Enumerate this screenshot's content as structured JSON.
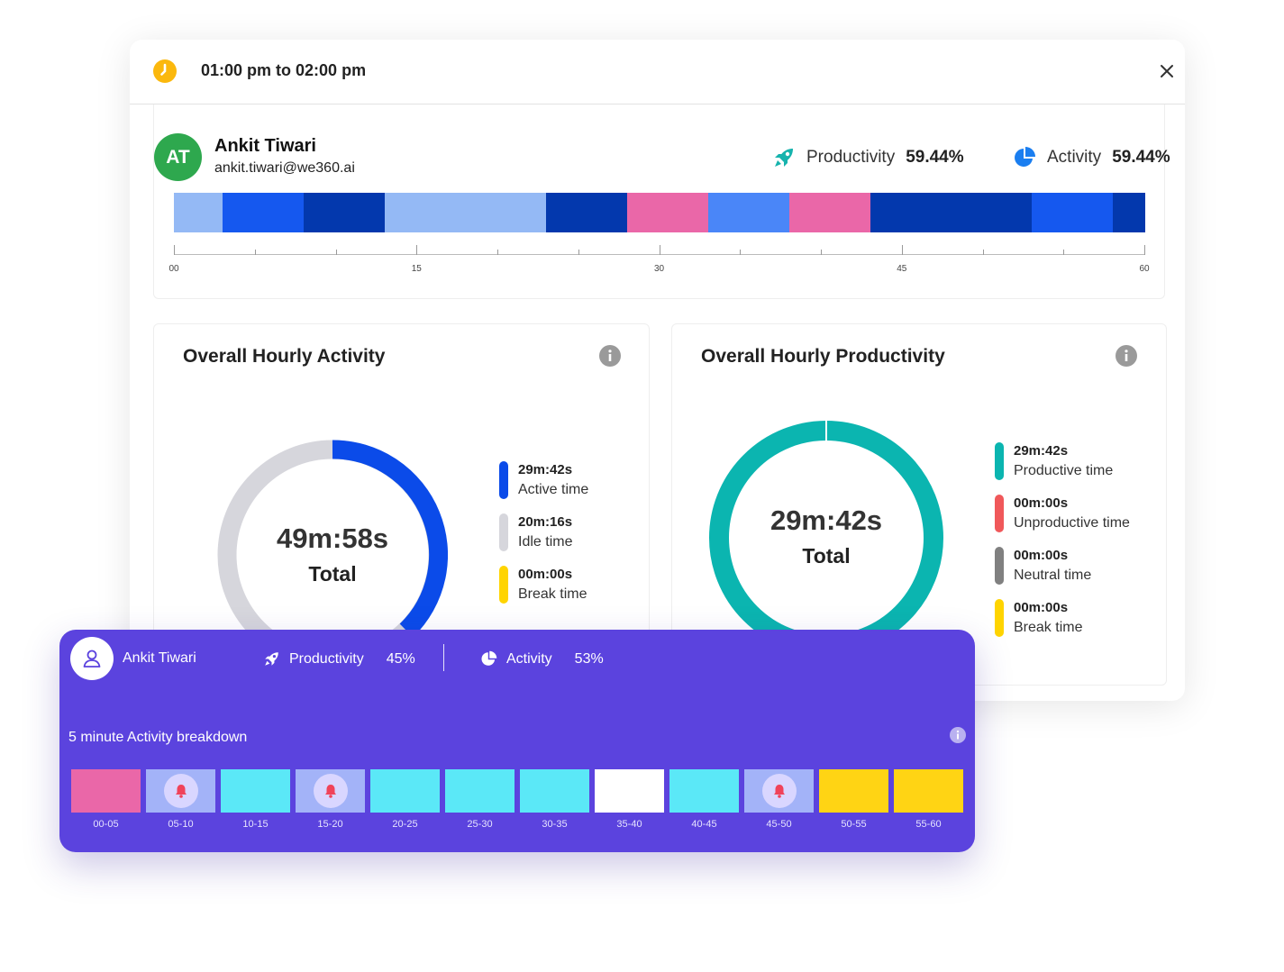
{
  "header": {
    "title": "01:00 pm to 02:00 pm",
    "icon": "clock-icon",
    "close_icon": "close-icon"
  },
  "user": {
    "initials": "AT",
    "name": "Ankit Tiwari",
    "email": "ankit.tiwari@we360.ai",
    "productivity_label": "Productivity",
    "productivity_value": "59.44%",
    "activity_label": "Activity",
    "activity_value": "59.44%"
  },
  "timeline": {
    "segments": [
      {
        "start": 0,
        "end": 3,
        "color": "#94b9f5"
      },
      {
        "start": 3,
        "end": 8,
        "color": "#1558ef"
      },
      {
        "start": 8,
        "end": 13,
        "color": "#0338ad"
      },
      {
        "start": 13,
        "end": 23,
        "color": "#94b9f5"
      },
      {
        "start": 23,
        "end": 28,
        "color": "#0338ad"
      },
      {
        "start": 28,
        "end": 33,
        "color": "#ea67a8"
      },
      {
        "start": 33,
        "end": 38,
        "color": "#4a86f8"
      },
      {
        "start": 38,
        "end": 43,
        "color": "#ea67a8"
      },
      {
        "start": 43,
        "end": 53,
        "color": "#0338ad"
      },
      {
        "start": 53,
        "end": 58,
        "color": "#1558ef"
      },
      {
        "start": 58,
        "end": 60,
        "color": "#0338ad"
      }
    ],
    "ticks": [
      "00",
      "15",
      "30",
      "45",
      "60"
    ]
  },
  "activity_panel": {
    "title": "Overall Hourly Activity",
    "total_value": "49m:58s",
    "total_label": "Total",
    "legend": [
      {
        "value": "29m:42s",
        "label": "Active time",
        "color": "#0b4be9"
      },
      {
        "value": "20m:16s",
        "label": "Idle time",
        "color": "#d6d6dc"
      },
      {
        "value": "00m:00s",
        "label": "Break time",
        "color": "#ffd400"
      }
    ]
  },
  "productivity_panel": {
    "title": "Overall Hourly Productivity",
    "total_value": "29m:42s",
    "total_label": "Total",
    "legend": [
      {
        "value": "29m:42s",
        "label": "Productive time",
        "color": "#0bb5b0"
      },
      {
        "value": "00m:00s",
        "label": "Unproductive time",
        "color": "#f0585a"
      },
      {
        "value": "00m:00s",
        "label": "Neutral time",
        "color": "#808080"
      },
      {
        "value": "00m:00s",
        "label": "Break time",
        "color": "#ffd400"
      }
    ]
  },
  "breakdown": {
    "name": "Ankit Tiwari",
    "productivity_label": "Productivity",
    "productivity_value": "45%",
    "activity_label": "Activity",
    "activity_value": "53%",
    "subtitle": "5 minute Activity breakdown",
    "slots": [
      {
        "label": "00-05",
        "color": "#ea67a8",
        "alert": false
      },
      {
        "label": "05-10",
        "color": "#a3b3f8",
        "alert": true
      },
      {
        "label": "10-15",
        "color": "#5be8f7",
        "alert": false
      },
      {
        "label": "15-20",
        "color": "#a3b3f8",
        "alert": true
      },
      {
        "label": "20-25",
        "color": "#5be8f7",
        "alert": false
      },
      {
        "label": "25-30",
        "color": "#5be8f7",
        "alert": false
      },
      {
        "label": "30-35",
        "color": "#5be8f7",
        "alert": false
      },
      {
        "label": "35-40",
        "color": "#ffffff",
        "alert": false
      },
      {
        "label": "40-45",
        "color": "#5be8f7",
        "alert": false
      },
      {
        "label": "45-50",
        "color": "#a3b3f8",
        "alert": true
      },
      {
        "label": "50-55",
        "color": "#ffd414",
        "alert": false
      },
      {
        "label": "55-60",
        "color": "#ffd414",
        "alert": false
      }
    ]
  }
}
